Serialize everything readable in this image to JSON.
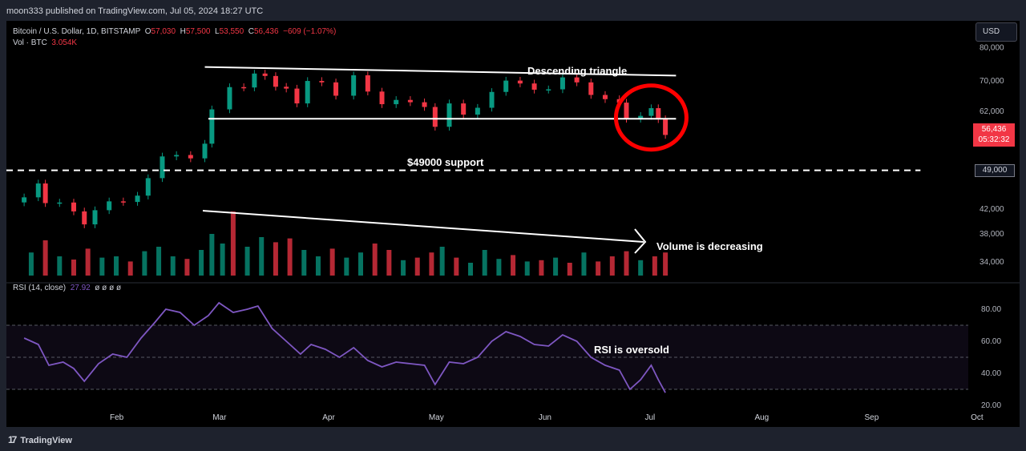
{
  "header": {
    "published": "moon333 published on TradingView.com, Jul 05, 2024 18:27 UTC"
  },
  "footer": {
    "brand": "TradingView"
  },
  "legend": {
    "symbol": "Bitcoin / U.S. Dollar, 1D, BITSTAMP",
    "open_label": "O",
    "open": "57,030",
    "high_label": "H",
    "high": "57,500",
    "low_label": "L",
    "low": "53,550",
    "close_label": "C",
    "close": "56,436",
    "change": "−609 (−1.07%)",
    "vol_label": "Vol · BTC",
    "vol": "3.054K"
  },
  "rsi_legend": {
    "label": "RSI (14, close)",
    "value": "27.92",
    "extras": "ø ø ø ø"
  },
  "currency_button": "USD",
  "price_tag": {
    "price": "56,436",
    "countdown": "05:32:32"
  },
  "level_tag": "49,000",
  "colors": {
    "up": "#089981",
    "down": "#f23645",
    "rsi": "#7e57c2",
    "annotation": "#ffffff",
    "circle": "#ff0000"
  },
  "chart_data": {
    "type": "candlestick",
    "symbol": "Bitcoin / U.S. Dollar",
    "interval": "1D",
    "x_ticks": [
      "Feb",
      "Mar",
      "Apr",
      "May",
      "Jun",
      "Jul",
      "Aug",
      "Sep",
      "Oct"
    ],
    "price_axis": {
      "ticks": [
        "80,000",
        "70,000",
        "62,000",
        "56,436",
        "49,000",
        "42,000",
        "38,000",
        "34,000"
      ],
      "scale": "log",
      "ylim": [
        32000,
        84000
      ]
    },
    "rsi_axis": {
      "ticks": [
        "80.00",
        "60.00",
        "40.00",
        "20.00"
      ],
      "ylim": [
        20,
        90
      ],
      "band": [
        30,
        70
      ]
    },
    "price_series": [
      {
        "date": "2024-01-06",
        "close": 44000
      },
      {
        "date": "2024-01-10",
        "close": 46500
      },
      {
        "date": "2024-01-12",
        "close": 43000
      },
      {
        "date": "2024-01-16",
        "close": 43100
      },
      {
        "date": "2024-01-20",
        "close": 41600
      },
      {
        "date": "2024-01-23",
        "close": 39500
      },
      {
        "date": "2024-01-26",
        "close": 41800
      },
      {
        "date": "2024-01-30",
        "close": 43300
      },
      {
        "date": "2024-02-03",
        "close": 43200
      },
      {
        "date": "2024-02-07",
        "close": 44300
      },
      {
        "date": "2024-02-10",
        "close": 47500
      },
      {
        "date": "2024-02-14",
        "close": 51800
      },
      {
        "date": "2024-02-18",
        "close": 52100
      },
      {
        "date": "2024-02-22",
        "close": 51400
      },
      {
        "date": "2024-02-26",
        "close": 54500
      },
      {
        "date": "2024-02-28",
        "close": 62500
      },
      {
        "date": "2024-03-04",
        "close": 68300
      },
      {
        "date": "2024-03-08",
        "close": 68200
      },
      {
        "date": "2024-03-11",
        "close": 72100
      },
      {
        "date": "2024-03-14",
        "close": 71400
      },
      {
        "date": "2024-03-17",
        "close": 68400
      },
      {
        "date": "2024-03-20",
        "close": 67900
      },
      {
        "date": "2024-03-23",
        "close": 64000
      },
      {
        "date": "2024-03-26",
        "close": 70000
      },
      {
        "date": "2024-03-30",
        "close": 69600
      },
      {
        "date": "2024-04-03",
        "close": 66000
      },
      {
        "date": "2024-04-08",
        "close": 71600
      },
      {
        "date": "2024-04-12",
        "close": 67100
      },
      {
        "date": "2024-04-16",
        "close": 63800
      },
      {
        "date": "2024-04-20",
        "close": 64900
      },
      {
        "date": "2024-04-24",
        "close": 64300
      },
      {
        "date": "2024-04-28",
        "close": 63100
      },
      {
        "date": "2024-05-01",
        "close": 58300
      },
      {
        "date": "2024-05-05",
        "close": 64000
      },
      {
        "date": "2024-05-09",
        "close": 61200
      },
      {
        "date": "2024-05-13",
        "close": 62900
      },
      {
        "date": "2024-05-17",
        "close": 67000
      },
      {
        "date": "2024-05-21",
        "close": 70100
      },
      {
        "date": "2024-05-25",
        "close": 69300
      },
      {
        "date": "2024-05-29",
        "close": 67600
      },
      {
        "date": "2024-06-02",
        "close": 67700
      },
      {
        "date": "2024-06-06",
        "close": 71000
      },
      {
        "date": "2024-06-10",
        "close": 69600
      },
      {
        "date": "2024-06-14",
        "close": 66200
      },
      {
        "date": "2024-06-18",
        "close": 65100
      },
      {
        "date": "2024-06-22",
        "close": 64200
      },
      {
        "date": "2024-06-24",
        "close": 60200
      },
      {
        "date": "2024-06-28",
        "close": 60900
      },
      {
        "date": "2024-07-01",
        "close": 62800
      },
      {
        "date": "2024-07-03",
        "close": 60100
      },
      {
        "date": "2024-07-05",
        "close": 56436
      }
    ],
    "rsi_series": [
      {
        "date": "2024-01-06",
        "value": 62
      },
      {
        "date": "2024-01-10",
        "value": 58
      },
      {
        "date": "2024-01-13",
        "value": 45
      },
      {
        "date": "2024-01-17",
        "value": 47
      },
      {
        "date": "2024-01-20",
        "value": 43
      },
      {
        "date": "2024-01-23",
        "value": 35
      },
      {
        "date": "2024-01-27",
        "value": 46
      },
      {
        "date": "2024-01-31",
        "value": 52
      },
      {
        "date": "2024-02-04",
        "value": 50
      },
      {
        "date": "2024-02-08",
        "value": 62
      },
      {
        "date": "2024-02-12",
        "value": 72
      },
      {
        "date": "2024-02-15",
        "value": 80
      },
      {
        "date": "2024-02-19",
        "value": 78
      },
      {
        "date": "2024-02-23",
        "value": 70
      },
      {
        "date": "2024-02-27",
        "value": 76
      },
      {
        "date": "2024-03-01",
        "value": 84
      },
      {
        "date": "2024-03-05",
        "value": 78
      },
      {
        "date": "2024-03-09",
        "value": 80
      },
      {
        "date": "2024-03-12",
        "value": 82
      },
      {
        "date": "2024-03-16",
        "value": 68
      },
      {
        "date": "2024-03-20",
        "value": 60
      },
      {
        "date": "2024-03-24",
        "value": 52
      },
      {
        "date": "2024-03-27",
        "value": 58
      },
      {
        "date": "2024-03-31",
        "value": 55
      },
      {
        "date": "2024-04-04",
        "value": 50
      },
      {
        "date": "2024-04-08",
        "value": 56
      },
      {
        "date": "2024-04-12",
        "value": 48
      },
      {
        "date": "2024-04-16",
        "value": 44
      },
      {
        "date": "2024-04-20",
        "value": 47
      },
      {
        "date": "2024-04-24",
        "value": 46
      },
      {
        "date": "2024-04-28",
        "value": 45
      },
      {
        "date": "2024-05-01",
        "value": 33
      },
      {
        "date": "2024-05-05",
        "value": 47
      },
      {
        "date": "2024-05-09",
        "value": 46
      },
      {
        "date": "2024-05-13",
        "value": 50
      },
      {
        "date": "2024-05-17",
        "value": 60
      },
      {
        "date": "2024-05-21",
        "value": 66
      },
      {
        "date": "2024-05-25",
        "value": 63
      },
      {
        "date": "2024-05-29",
        "value": 58
      },
      {
        "date": "2024-06-02",
        "value": 57
      },
      {
        "date": "2024-06-06",
        "value": 64
      },
      {
        "date": "2024-06-10",
        "value": 60
      },
      {
        "date": "2024-06-14",
        "value": 50
      },
      {
        "date": "2024-06-18",
        "value": 45
      },
      {
        "date": "2024-06-22",
        "value": 42
      },
      {
        "date": "2024-06-25",
        "value": 30
      },
      {
        "date": "2024-06-28",
        "value": 36
      },
      {
        "date": "2024-07-01",
        "value": 45
      },
      {
        "date": "2024-07-03",
        "value": 36
      },
      {
        "date": "2024-07-05",
        "value": 27.92
      }
    ],
    "volume_series": [
      {
        "date": "2024-01-08",
        "value": 36,
        "dir": "up"
      },
      {
        "date": "2024-01-12",
        "value": 55,
        "dir": "down"
      },
      {
        "date": "2024-01-16",
        "value": 30,
        "dir": "up"
      },
      {
        "date": "2024-01-20",
        "value": 25,
        "dir": "down"
      },
      {
        "date": "2024-01-24",
        "value": 42,
        "dir": "down"
      },
      {
        "date": "2024-01-28",
        "value": 28,
        "dir": "up"
      },
      {
        "date": "2024-02-01",
        "value": 30,
        "dir": "up"
      },
      {
        "date": "2024-02-05",
        "value": 22,
        "dir": "down"
      },
      {
        "date": "2024-02-09",
        "value": 38,
        "dir": "up"
      },
      {
        "date": "2024-02-13",
        "value": 45,
        "dir": "up"
      },
      {
        "date": "2024-02-17",
        "value": 30,
        "dir": "up"
      },
      {
        "date": "2024-02-21",
        "value": 26,
        "dir": "down"
      },
      {
        "date": "2024-02-25",
        "value": 40,
        "dir": "up"
      },
      {
        "date": "2024-02-28",
        "value": 65,
        "dir": "up"
      },
      {
        "date": "2024-03-02",
        "value": 50,
        "dir": "up"
      },
      {
        "date": "2024-03-05",
        "value": 100,
        "dir": "down"
      },
      {
        "date": "2024-03-09",
        "value": 45,
        "dir": "up"
      },
      {
        "date": "2024-03-13",
        "value": 60,
        "dir": "up"
      },
      {
        "date": "2024-03-17",
        "value": 52,
        "dir": "down"
      },
      {
        "date": "2024-03-21",
        "value": 58,
        "dir": "down"
      },
      {
        "date": "2024-03-25",
        "value": 40,
        "dir": "up"
      },
      {
        "date": "2024-03-29",
        "value": 30,
        "dir": "up"
      },
      {
        "date": "2024-04-02",
        "value": 42,
        "dir": "down"
      },
      {
        "date": "2024-04-06",
        "value": 28,
        "dir": "up"
      },
      {
        "date": "2024-04-10",
        "value": 36,
        "dir": "up"
      },
      {
        "date": "2024-04-14",
        "value": 50,
        "dir": "down"
      },
      {
        "date": "2024-04-18",
        "value": 40,
        "dir": "down"
      },
      {
        "date": "2024-04-22",
        "value": 24,
        "dir": "up"
      },
      {
        "date": "2024-04-26",
        "value": 28,
        "dir": "down"
      },
      {
        "date": "2024-04-30",
        "value": 36,
        "dir": "down"
      },
      {
        "date": "2024-05-03",
        "value": 45,
        "dir": "up"
      },
      {
        "date": "2024-05-07",
        "value": 28,
        "dir": "down"
      },
      {
        "date": "2024-05-11",
        "value": 20,
        "dir": "up"
      },
      {
        "date": "2024-05-15",
        "value": 40,
        "dir": "up"
      },
      {
        "date": "2024-05-19",
        "value": 26,
        "dir": "up"
      },
      {
        "date": "2024-05-23",
        "value": 32,
        "dir": "down"
      },
      {
        "date": "2024-05-27",
        "value": 22,
        "dir": "up"
      },
      {
        "date": "2024-05-31",
        "value": 24,
        "dir": "down"
      },
      {
        "date": "2024-06-04",
        "value": 28,
        "dir": "up"
      },
      {
        "date": "2024-06-08",
        "value": 20,
        "dir": "down"
      },
      {
        "date": "2024-06-12",
        "value": 36,
        "dir": "up"
      },
      {
        "date": "2024-06-16",
        "value": 22,
        "dir": "down"
      },
      {
        "date": "2024-06-20",
        "value": 30,
        "dir": "down"
      },
      {
        "date": "2024-06-24",
        "value": 38,
        "dir": "down"
      },
      {
        "date": "2024-06-28",
        "value": 24,
        "dir": "up"
      },
      {
        "date": "2024-07-02",
        "value": 30,
        "dir": "down"
      },
      {
        "date": "2024-07-05",
        "value": 36,
        "dir": "down"
      }
    ],
    "annotations": [
      {
        "kind": "label",
        "text": "Descending triangle"
      },
      {
        "kind": "label",
        "text": "$49000 support",
        "price": 49000
      },
      {
        "kind": "label",
        "text": "Volume is decreasing"
      },
      {
        "kind": "label",
        "text": "RSI is oversold"
      },
      {
        "kind": "trendline",
        "name": "triangle-top",
        "from": {
          "date": "2024-02-26",
          "price": 74000
        },
        "to": {
          "date": "2024-07-08",
          "price": 71500
        }
      },
      {
        "kind": "trendline",
        "name": "triangle-base",
        "from": {
          "date": "2024-02-27",
          "price": 60200
        },
        "to": {
          "date": "2024-07-08",
          "price": 60200
        }
      },
      {
        "kind": "trendline",
        "name": "support-49000",
        "from": {
          "date": "2024-01-01",
          "price": 49000
        },
        "to": {
          "date": "2024-09-15",
          "price": 49000
        },
        "dashed": true
      },
      {
        "kind": "circle",
        "center": {
          "date": "2024-07-01",
          "price": 60500
        }
      }
    ]
  }
}
